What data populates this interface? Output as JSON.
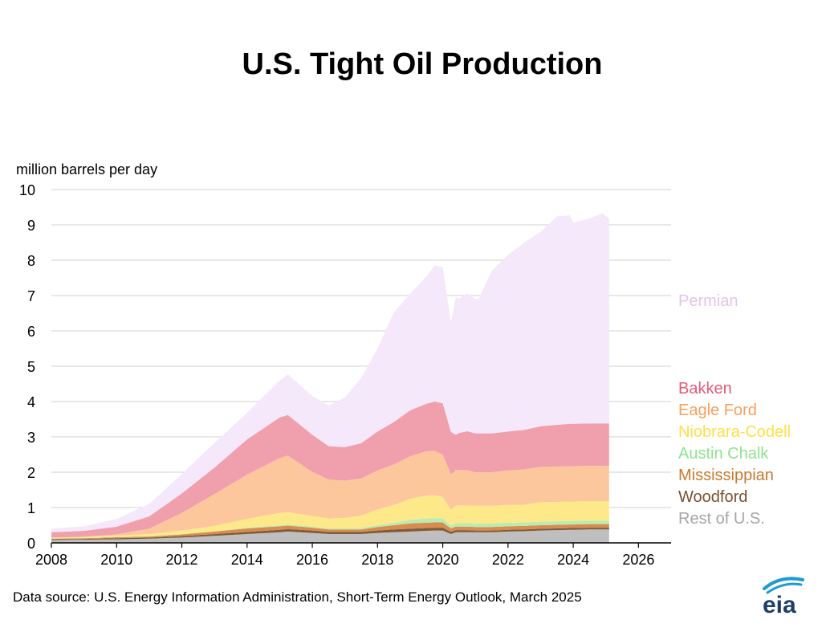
{
  "title": "U.S. Tight Oil Production",
  "source": "Data source: U.S. Energy Information Administration, Short-Term Energy Outlook, March 2025",
  "logo": "eia",
  "chart_data": {
    "type": "area",
    "stacked": true,
    "ylabel": "million barrels per day",
    "xlabel": "",
    "xlim": [
      2008,
      2027
    ],
    "ylim": [
      0,
      10
    ],
    "grid": true,
    "legend_position": "right",
    "x_ticks": [
      "2008",
      "2010",
      "2012",
      "2014",
      "2016",
      "2018",
      "2020",
      "2022",
      "2024",
      "2026"
    ],
    "y_ticks": [
      "0",
      "1",
      "2",
      "3",
      "4",
      "5",
      "6",
      "7",
      "8",
      "9",
      "10"
    ],
    "x": [
      2008.0,
      2009.0,
      2010.0,
      2011.0,
      2012.0,
      2013.0,
      2014.0,
      2015.0,
      2015.25,
      2016.0,
      2016.5,
      2017.0,
      2017.5,
      2018.0,
      2018.5,
      2019.0,
      2019.5,
      2019.75,
      2020.0,
      2020.25,
      2020.4,
      2020.5,
      2020.75,
      2021.0,
      2021.1,
      2021.5,
      2022.0,
      2022.5,
      2023.0,
      2023.5,
      2023.9,
      2024.0,
      2024.5,
      2024.9,
      2025.1
    ],
    "series": [
      {
        "name": "Rest of U.S.",
        "color": "#bfbfbf",
        "values": [
          0.08,
          0.09,
          0.1,
          0.12,
          0.15,
          0.2,
          0.25,
          0.3,
          0.32,
          0.28,
          0.25,
          0.25,
          0.25,
          0.28,
          0.3,
          0.32,
          0.34,
          0.35,
          0.35,
          0.25,
          0.3,
          0.3,
          0.3,
          0.3,
          0.3,
          0.3,
          0.32,
          0.33,
          0.35,
          0.36,
          0.37,
          0.37,
          0.38,
          0.38,
          0.38
        ]
      },
      {
        "name": "Woodford",
        "color": "#7f5b3a",
        "values": [
          0.02,
          0.02,
          0.03,
          0.03,
          0.04,
          0.05,
          0.06,
          0.07,
          0.07,
          0.07,
          0.06,
          0.06,
          0.06,
          0.07,
          0.08,
          0.08,
          0.08,
          0.08,
          0.08,
          0.06,
          0.06,
          0.06,
          0.06,
          0.05,
          0.05,
          0.05,
          0.05,
          0.05,
          0.05,
          0.05,
          0.05,
          0.05,
          0.05,
          0.05,
          0.05
        ]
      },
      {
        "name": "Mississippian",
        "color": "#d98b50",
        "values": [
          0.02,
          0.02,
          0.03,
          0.03,
          0.05,
          0.07,
          0.1,
          0.1,
          0.1,
          0.08,
          0.07,
          0.07,
          0.07,
          0.1,
          0.12,
          0.15,
          0.15,
          0.15,
          0.15,
          0.1,
          0.1,
          0.1,
          0.1,
          0.1,
          0.1,
          0.1,
          0.1,
          0.1,
          0.1,
          0.1,
          0.1,
          0.1,
          0.1,
          0.1,
          0.1
        ]
      },
      {
        "name": "Austin Chalk",
        "color": "#b8ecb0",
        "values": [
          0.01,
          0.01,
          0.01,
          0.01,
          0.01,
          0.01,
          0.02,
          0.03,
          0.03,
          0.03,
          0.03,
          0.03,
          0.04,
          0.05,
          0.07,
          0.1,
          0.12,
          0.12,
          0.12,
          0.08,
          0.1,
          0.1,
          0.1,
          0.1,
          0.1,
          0.1,
          0.1,
          0.1,
          0.1,
          0.1,
          0.1,
          0.1,
          0.1,
          0.1,
          0.1
        ]
      },
      {
        "name": "Niobrara-Codell",
        "color": "#fde98a",
        "values": [
          0.02,
          0.03,
          0.04,
          0.06,
          0.1,
          0.15,
          0.25,
          0.35,
          0.35,
          0.3,
          0.28,
          0.3,
          0.35,
          0.45,
          0.5,
          0.6,
          0.65,
          0.65,
          0.6,
          0.45,
          0.5,
          0.5,
          0.5,
          0.5,
          0.5,
          0.5,
          0.5,
          0.5,
          0.55,
          0.55,
          0.55,
          0.55,
          0.55,
          0.55,
          0.55
        ]
      },
      {
        "name": "Eagle Ford",
        "color": "#fcc79c",
        "values": [
          0.0,
          0.0,
          0.03,
          0.15,
          0.5,
          0.9,
          1.25,
          1.55,
          1.6,
          1.25,
          1.1,
          1.05,
          1.05,
          1.1,
          1.15,
          1.2,
          1.25,
          1.25,
          1.2,
          1.0,
          1.0,
          1.0,
          1.0,
          0.95,
          0.95,
          0.95,
          0.98,
          1.0,
          1.0,
          1.0,
          1.0,
          1.0,
          1.0,
          1.0,
          1.0
        ]
      },
      {
        "name": "Bakken",
        "color": "#f0a0ac",
        "values": [
          0.15,
          0.17,
          0.22,
          0.35,
          0.55,
          0.75,
          1.0,
          1.15,
          1.15,
          1.05,
          0.95,
          0.95,
          1.0,
          1.1,
          1.2,
          1.3,
          1.35,
          1.4,
          1.45,
          1.2,
          1.0,
          1.05,
          1.1,
          1.1,
          1.1,
          1.1,
          1.1,
          1.12,
          1.15,
          1.18,
          1.2,
          1.2,
          1.2,
          1.2,
          1.2
        ]
      },
      {
        "name": "Permian",
        "color": "#f4e8fa",
        "values": [
          0.1,
          0.13,
          0.22,
          0.35,
          0.55,
          0.7,
          0.75,
          1.05,
          1.15,
          1.1,
          1.15,
          1.4,
          1.85,
          2.35,
          3.1,
          3.3,
          3.6,
          3.85,
          3.85,
          3.1,
          3.9,
          3.8,
          3.9,
          3.8,
          3.8,
          4.6,
          5.0,
          5.3,
          5.5,
          5.9,
          5.9,
          5.7,
          5.8,
          5.95,
          5.8
        ]
      }
    ]
  }
}
